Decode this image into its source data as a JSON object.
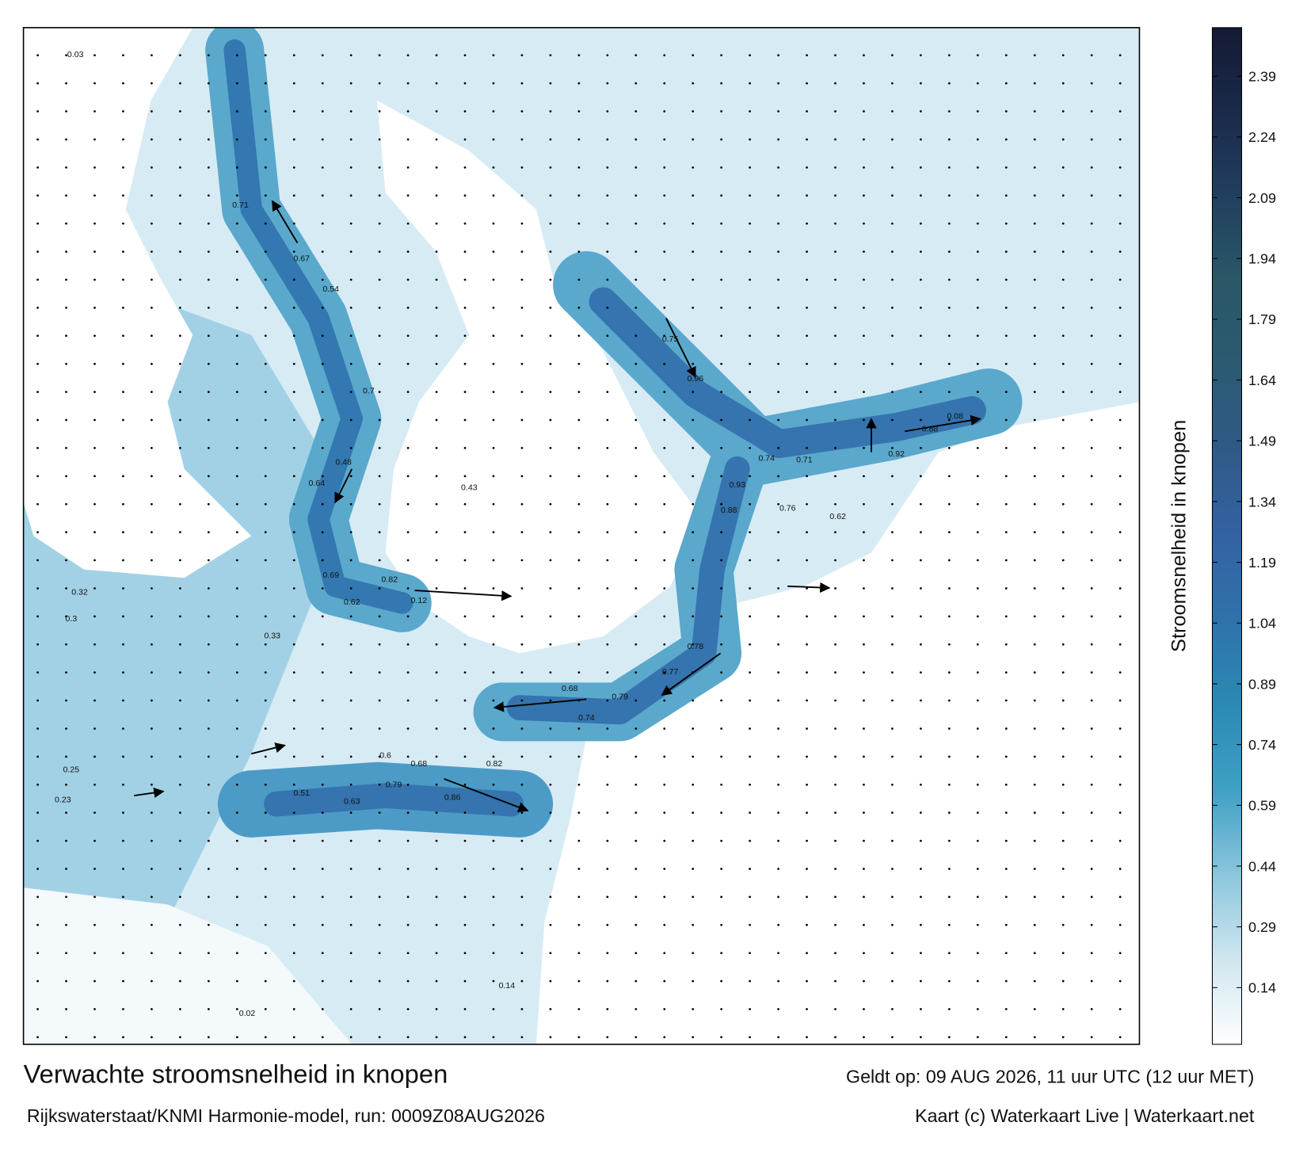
{
  "header": {
    "title": "Verwachte stroomsnelheid in knopen",
    "model": "Rijkswaterstaat/KNMI Harmonie-model, run: 0009Z08AUG2026",
    "valid": "Geldt op: 09 AUG 2026, 11 uur UTC (12 uur MET)",
    "credit": "Kaart (c) Waterkaart Live | Waterkaart.net"
  },
  "colorbar": {
    "label": "Stroomsnelheid in knopen",
    "range": [
      0,
      2.51
    ],
    "ticks": [
      0.14,
      0.29,
      0.44,
      0.59,
      0.74,
      0.89,
      1.04,
      1.19,
      1.34,
      1.49,
      1.64,
      1.79,
      1.94,
      2.09,
      2.24,
      2.39
    ],
    "colors": [
      "#ffffff",
      "#cfe6f0",
      "#8cc6dd",
      "#3fa0c5",
      "#2b8ab3",
      "#2f72aa",
      "#3462a2",
      "#2f5a88",
      "#2b5a72",
      "#2a5866",
      "#223f5f",
      "#1a2a4a",
      "#141a33"
    ]
  },
  "speed_labels": [
    0.71,
    0.67,
    0.54,
    0.7,
    0.48,
    0.64,
    0.69,
    0.82,
    0.62,
    0.12,
    0.75,
    0.96,
    0.74,
    0.71,
    0.92,
    0.88,
    0.08,
    0.93,
    0.88,
    0.76,
    0.62,
    0.78,
    0.77,
    0.79,
    0.74,
    0.68,
    0.82,
    0.86,
    0.79,
    0.51,
    0.63,
    0.6,
    0.68,
    0.43,
    0.32,
    0.3,
    0.33,
    0.25,
    0.23,
    0.14,
    0.03,
    0.02
  ]
}
